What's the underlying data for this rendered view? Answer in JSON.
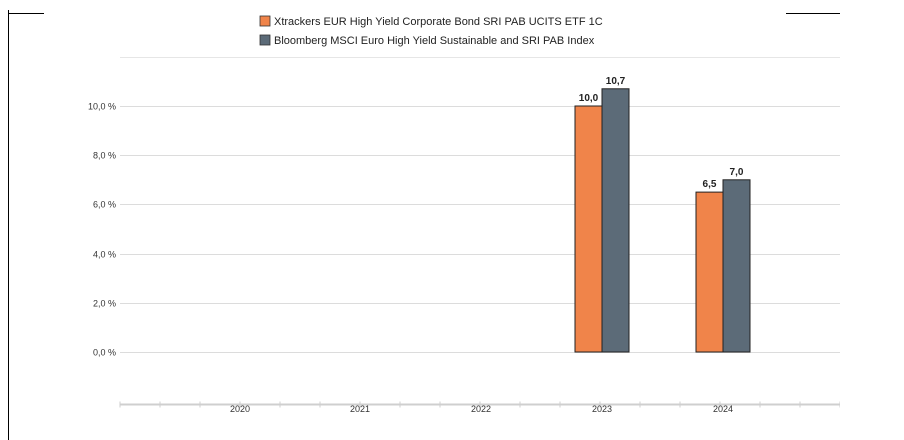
{
  "chart_data": {
    "type": "bar",
    "categories": [
      "2020",
      "2021",
      "2022",
      "2023",
      "2024"
    ],
    "series": [
      {
        "name": "Xtrackers EUR High Yield Corporate Bond SRI PAB UCITS ETF 1C",
        "color": "#f0844a",
        "values": [
          null,
          null,
          null,
          10.0,
          6.5
        ],
        "labels": [
          "",
          "",
          "",
          "10,0",
          "6,5"
        ]
      },
      {
        "name": "Bloomberg MSCI Euro High Yield Sustainable and SRI PAB Index",
        "color": "#5c6b78",
        "values": [
          null,
          null,
          null,
          10.7,
          7.0
        ],
        "labels": [
          "",
          "",
          "",
          "10,7",
          "7,0"
        ]
      }
    ],
    "yticks": [
      0,
      2,
      4,
      6,
      8,
      10
    ],
    "ytick_labels": [
      "0,0 %",
      "2,0 %",
      "4,0 %",
      "6,0 %",
      "8,0 %",
      "10,0 %"
    ],
    "ylim": [
      0,
      10.7
    ],
    "grid": true,
    "legend_position": "top"
  }
}
